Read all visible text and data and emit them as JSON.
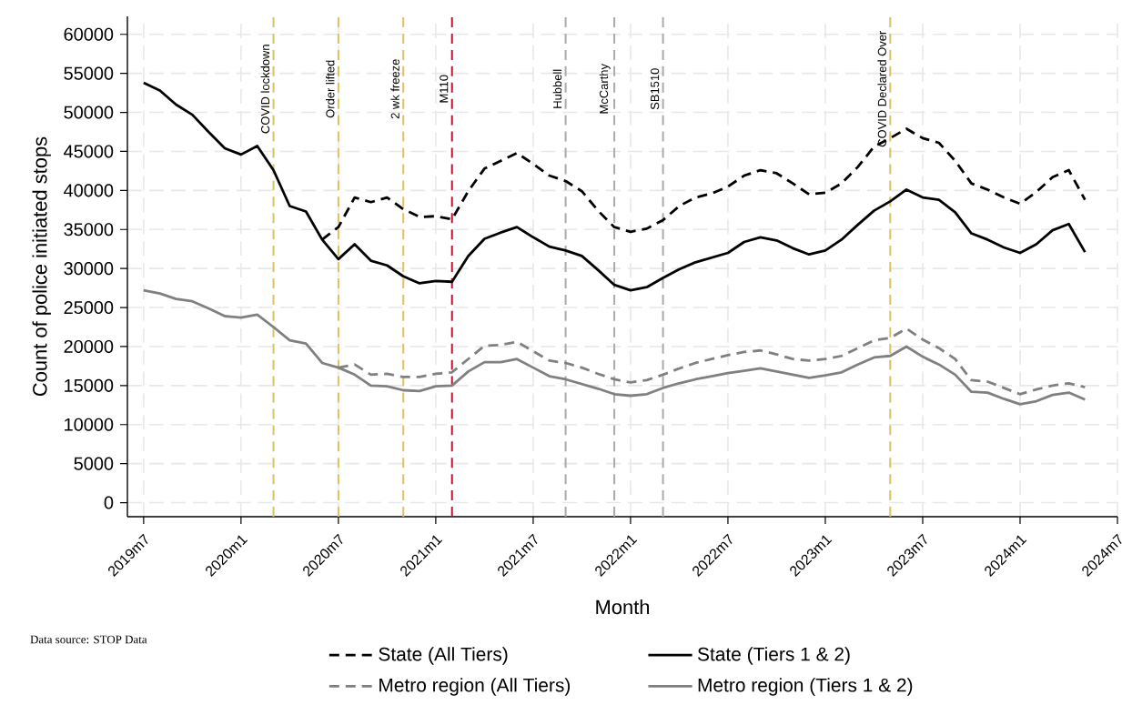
{
  "chart_data": {
    "type": "line",
    "xlabel": "Month",
    "ylabel": "Count of police initiated stops",
    "annotations": [
      "Data source: STOP Data"
    ],
    "x": [
      "2019-07",
      "2019-08",
      "2019-09",
      "2019-10",
      "2019-11",
      "2019-12",
      "2020-01",
      "2020-02",
      "2020-03",
      "2020-04",
      "2020-05",
      "2020-06",
      "2020-07",
      "2020-08",
      "2020-09",
      "2020-10",
      "2020-11",
      "2020-12",
      "2021-01",
      "2021-02",
      "2021-03",
      "2021-04",
      "2021-05",
      "2021-06",
      "2021-07",
      "2021-08",
      "2021-09",
      "2021-10",
      "2021-11",
      "2021-12",
      "2022-01",
      "2022-02",
      "2022-03",
      "2022-04",
      "2022-05",
      "2022-06",
      "2022-07",
      "2022-08",
      "2022-09",
      "2022-10",
      "2022-11",
      "2022-12",
      "2023-01",
      "2023-02",
      "2023-03",
      "2023-04",
      "2023-05",
      "2023-06",
      "2023-07",
      "2023-08",
      "2023-09",
      "2023-10",
      "2023-11",
      "2023-12",
      "2024-01",
      "2024-02",
      "2024-03",
      "2024-04",
      "2024-05"
    ],
    "series": [
      {
        "name": "State (All Tiers)",
        "color": "#000000",
        "line_style": "dashed",
        "values": [
          null,
          null,
          null,
          null,
          null,
          null,
          null,
          null,
          null,
          null,
          null,
          33700,
          35300,
          39100,
          38500,
          39100,
          37600,
          36600,
          36700,
          36300,
          39900,
          42800,
          43800,
          44800,
          43400,
          41900,
          41200,
          39900,
          37400,
          35300,
          34700,
          35100,
          36200,
          38000,
          39100,
          39600,
          40500,
          41900,
          42600,
          42200,
          40900,
          39500,
          39700,
          40900,
          43000,
          45600,
          46700,
          47900,
          46700,
          46100,
          43800,
          40900,
          40100,
          39100,
          38300,
          39800,
          41700,
          42600,
          38800
        ]
      },
      {
        "name": "State (Tiers 1 & 2)",
        "color": "#000000",
        "line_style": "solid",
        "values": [
          53800,
          52800,
          51000,
          49700,
          47500,
          45400,
          44600,
          45700,
          42600,
          38000,
          37300,
          33700,
          31200,
          33100,
          31000,
          30400,
          29000,
          28100,
          28400,
          28300,
          31600,
          33800,
          34600,
          35300,
          34000,
          32800,
          32300,
          31600,
          29800,
          27900,
          27200,
          27600,
          28800,
          29900,
          30800,
          31400,
          32000,
          33400,
          34000,
          33600,
          32600,
          31800,
          32300,
          33700,
          35600,
          37400,
          38600,
          40100,
          39100,
          38800,
          37200,
          34500,
          33700,
          32700,
          32000,
          33100,
          34900,
          35700,
          32100
        ]
      },
      {
        "name": "Metro region (All Tiers)",
        "color": "#808080",
        "line_style": "dashed",
        "values": [
          null,
          null,
          null,
          null,
          null,
          null,
          null,
          null,
          null,
          null,
          null,
          null,
          17300,
          17700,
          16400,
          16500,
          16100,
          16100,
          16500,
          16700,
          18400,
          20100,
          20200,
          20600,
          19400,
          18200,
          17900,
          17300,
          16500,
          15800,
          15400,
          15700,
          16400,
          17200,
          17900,
          18400,
          18900,
          19300,
          19500,
          19000,
          18400,
          18200,
          18400,
          18800,
          19800,
          20800,
          21100,
          22300,
          20900,
          19800,
          18400,
          15700,
          15500,
          14700,
          13900,
          14500,
          15000,
          15300,
          14800
        ]
      },
      {
        "name": "Metro region (Tiers 1 & 2)",
        "color": "#808080",
        "line_style": "solid",
        "values": [
          27200,
          26800,
          26100,
          25800,
          24900,
          23900,
          23700,
          24100,
          22500,
          20800,
          20400,
          17900,
          17300,
          16400,
          15000,
          14900,
          14400,
          14300,
          14900,
          15000,
          16800,
          18000,
          18000,
          18400,
          17300,
          16200,
          15800,
          15200,
          14600,
          13900,
          13700,
          13900,
          14700,
          15300,
          15800,
          16200,
          16600,
          16900,
          17200,
          16800,
          16400,
          16000,
          16300,
          16700,
          17700,
          18600,
          18800,
          20000,
          18700,
          17700,
          16400,
          14200,
          14100,
          13300,
          12600,
          13000,
          13800,
          14100,
          13200
        ]
      }
    ],
    "xlim": [
      "2019-06",
      "2024-07"
    ],
    "xticks": [
      {
        "value": "2019-07",
        "label": "2019m7"
      },
      {
        "value": "2020-01",
        "label": "2020m1"
      },
      {
        "value": "2020-07",
        "label": "2020m7"
      },
      {
        "value": "2021-01",
        "label": "2021m1"
      },
      {
        "value": "2021-07",
        "label": "2021m7"
      },
      {
        "value": "2022-01",
        "label": "2022m1"
      },
      {
        "value": "2022-07",
        "label": "2022m7"
      },
      {
        "value": "2023-01",
        "label": "2023m1"
      },
      {
        "value": "2023-07",
        "label": "2023m7"
      },
      {
        "value": "2024-01",
        "label": "2024m1"
      },
      {
        "value": "2024-07",
        "label": "2024m7"
      }
    ],
    "ylim": [
      -1800,
      62300
    ],
    "yticks": [
      0,
      5000,
      10000,
      15000,
      20000,
      25000,
      30000,
      35000,
      40000,
      45000,
      50000,
      55000,
      60000
    ],
    "ref_lines": [
      {
        "axis": "x",
        "value": "2020-03",
        "label": "COVID lockdown",
        "color": "#dfc060",
        "line_style": "dashed"
      },
      {
        "axis": "x",
        "value": "2020-07",
        "label": "Order lifted",
        "color": "#dfc060",
        "line_style": "dashed"
      },
      {
        "axis": "x",
        "value": "2020-11",
        "label": "2 wk freeze",
        "color": "#dfc060",
        "line_style": "dashed"
      },
      {
        "axis": "x",
        "value": "2021-02",
        "label": "M110",
        "color": "#c8102e",
        "line_style": "dashed"
      },
      {
        "axis": "x",
        "value": "2021-09",
        "label": "Hubbell",
        "color": "#aaaaaa",
        "line_style": "dashed"
      },
      {
        "axis": "x",
        "value": "2021-12",
        "label": "McCarthy",
        "color": "#aaaaaa",
        "line_style": "dashed"
      },
      {
        "axis": "x",
        "value": "2022-03",
        "label": "SB1510",
        "color": "#aaaaaa",
        "line_style": "dashed"
      },
      {
        "axis": "x",
        "value": "2023-05",
        "label": "COVID Declared Over",
        "color": "#dfc060",
        "line_style": "dashed"
      }
    ],
    "grid": true,
    "legend": "bottom"
  }
}
